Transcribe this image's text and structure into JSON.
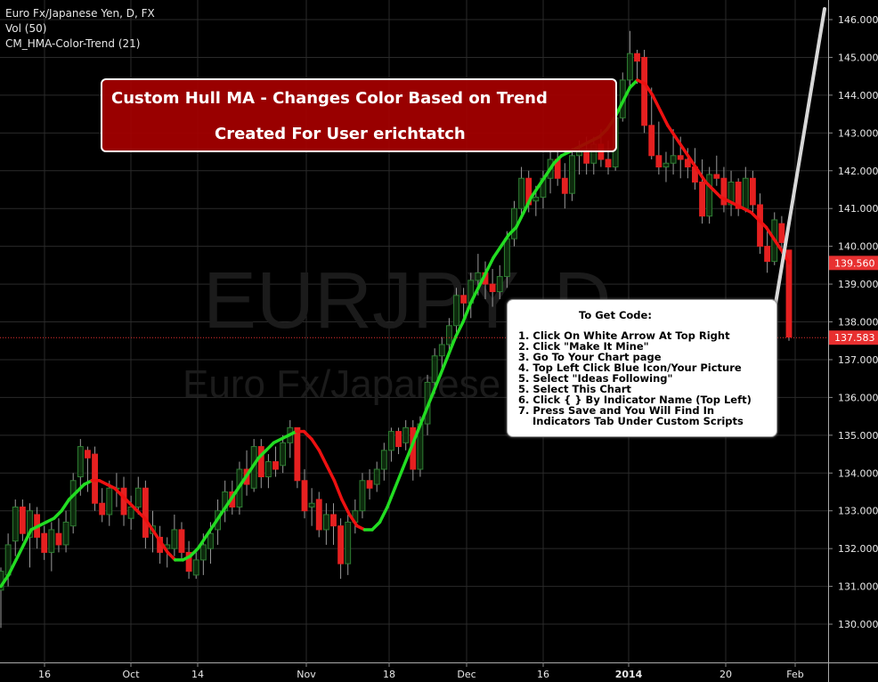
{
  "header": {
    "symbol_line": "Euro Fx/Japanese Yen, D, FX",
    "volume_line": "Vol (50)",
    "indicator_line": "CM_HMA-Color-Trend (21)"
  },
  "watermark": {
    "ticker": "EURJPY, D",
    "name": "Euro Fx/Japanese Yen"
  },
  "banner": {
    "line1": "Custom Hull MA - Changes Color Based on Trend",
    "line2": "Created For User erichtatch"
  },
  "callout": {
    "title": "To Get Code:",
    "steps": [
      "1. Click On White Arrow At Top Right",
      "2. Click \"Make It Mine\"",
      "3. Go To Your Chart page",
      "4. Top Left Click Blue Icon/Your Picture",
      "5. Select \"Ideas Following\"",
      "5. Select This Chart",
      "6. Click { } By Indicator Name (Top Left)",
      "7. Press Save and You Will Find In",
      "    Indicators Tab Under Custom Scripts"
    ]
  },
  "colors": {
    "background": "#000000",
    "up_candle": "#2e7d32",
    "down_candle": "#e52020",
    "hma_up": "#22dd22",
    "hma_down": "#ee1111",
    "price_label": "#e83030",
    "banner": "#a50000"
  },
  "chart_data": {
    "type": "candlestick",
    "y_axis_ticks": [
      "146.000",
      "145.000",
      "144.000",
      "143.000",
      "142.000",
      "141.000",
      "140.000",
      "139.000",
      "138.000",
      "137.000",
      "136.000",
      "135.000",
      "134.000",
      "133.000",
      "132.000",
      "131.000",
      "130.000"
    ],
    "ylim": [
      129.2,
      146.5
    ],
    "x_axis_ticks": [
      "16",
      "Oct",
      "14",
      "Nov",
      "18",
      "Dec",
      "16",
      "2014",
      "20",
      "Feb"
    ],
    "price_labels": [
      {
        "text": "139.560",
        "value": 139.56,
        "kind": "hma"
      },
      {
        "text": "137.583",
        "value": 137.583,
        "kind": "last"
      }
    ],
    "candles": [
      [
        130.9,
        131.5,
        129.9,
        131.4
      ],
      [
        131.3,
        132.4,
        131.0,
        132.1
      ],
      [
        132.2,
        133.3,
        131.8,
        133.1
      ],
      [
        133.1,
        133.3,
        132.2,
        132.4
      ],
      [
        132.3,
        133.2,
        131.5,
        133.0
      ],
      [
        132.9,
        133.1,
        132.0,
        132.3
      ],
      [
        132.4,
        132.6,
        131.7,
        131.9
      ],
      [
        131.9,
        132.7,
        131.4,
        132.5
      ],
      [
        132.4,
        132.8,
        131.9,
        132.1
      ],
      [
        132.1,
        133.0,
        131.9,
        132.7
      ],
      [
        132.6,
        134.0,
        132.4,
        133.8
      ],
      [
        133.9,
        134.9,
        133.4,
        134.7
      ],
      [
        134.6,
        134.7,
        133.5,
        134.4
      ],
      [
        134.5,
        134.7,
        133.0,
        133.2
      ],
      [
        133.2,
        133.6,
        132.7,
        132.9
      ],
      [
        132.9,
        133.8,
        132.6,
        133.6
      ],
      [
        133.6,
        134.0,
        133.1,
        133.6
      ],
      [
        133.6,
        133.9,
        132.6,
        132.9
      ],
      [
        132.8,
        133.4,
        132.5,
        133.1
      ],
      [
        133.1,
        133.9,
        132.9,
        133.6
      ],
      [
        133.6,
        133.8,
        132.0,
        132.3
      ],
      [
        132.4,
        133.0,
        131.9,
        132.6
      ],
      [
        132.3,
        132.6,
        131.6,
        131.9
      ],
      [
        132.0,
        132.3,
        131.5,
        132.1
      ],
      [
        132.0,
        132.9,
        131.8,
        132.5
      ],
      [
        132.5,
        132.7,
        131.7,
        131.9
      ],
      [
        131.9,
        132.2,
        131.2,
        131.4
      ],
      [
        131.3,
        131.9,
        131.2,
        131.7
      ],
      [
        131.7,
        132.4,
        131.3,
        132.1
      ],
      [
        132.0,
        132.7,
        131.6,
        132.4
      ],
      [
        132.5,
        133.3,
        132.1,
        133.0
      ],
      [
        133.0,
        133.8,
        132.7,
        133.5
      ],
      [
        133.5,
        133.8,
        132.9,
        133.1
      ],
      [
        133.1,
        134.3,
        132.9,
        134.1
      ],
      [
        134.1,
        134.6,
        133.4,
        133.7
      ],
      [
        133.6,
        134.9,
        133.5,
        134.7
      ],
      [
        134.7,
        134.9,
        133.6,
        133.9
      ],
      [
        133.9,
        134.5,
        133.6,
        134.3
      ],
      [
        134.3,
        134.7,
        133.9,
        134.1
      ],
      [
        134.2,
        135.0,
        134.0,
        134.8
      ],
      [
        134.8,
        135.4,
        134.4,
        135.2
      ],
      [
        135.2,
        135.2,
        133.6,
        133.8
      ],
      [
        133.8,
        134.1,
        132.8,
        133.0
      ],
      [
        133.1,
        133.6,
        132.6,
        133.2
      ],
      [
        133.3,
        133.5,
        132.3,
        132.5
      ],
      [
        132.5,
        133.2,
        132.1,
        132.9
      ],
      [
        132.9,
        133.2,
        132.1,
        132.6
      ],
      [
        132.6,
        132.8,
        131.2,
        131.6
      ],
      [
        131.6,
        132.9,
        131.3,
        132.7
      ],
      [
        132.7,
        133.3,
        132.4,
        133.0
      ],
      [
        133.0,
        134.0,
        132.8,
        133.8
      ],
      [
        133.8,
        134.1,
        133.3,
        133.6
      ],
      [
        133.7,
        134.3,
        133.5,
        134.1
      ],
      [
        134.1,
        134.8,
        133.8,
        134.6
      ],
      [
        134.6,
        135.2,
        134.3,
        135.1
      ],
      [
        135.1,
        135.2,
        134.5,
        134.7
      ],
      [
        134.8,
        135.4,
        134.6,
        135.2
      ],
      [
        135.2,
        135.4,
        133.8,
        134.1
      ],
      [
        134.1,
        135.5,
        133.9,
        135.3
      ],
      [
        135.3,
        136.6,
        135.0,
        136.4
      ],
      [
        136.4,
        137.3,
        136.1,
        137.1
      ],
      [
        137.1,
        137.6,
        136.7,
        137.4
      ],
      [
        137.4,
        138.1,
        137.1,
        137.9
      ],
      [
        137.9,
        138.9,
        137.6,
        138.7
      ],
      [
        138.7,
        138.9,
        138.1,
        138.5
      ],
      [
        138.5,
        139.3,
        138.1,
        139.1
      ],
      [
        139.1,
        139.8,
        138.7,
        139.3
      ],
      [
        139.3,
        139.6,
        138.6,
        139.0
      ],
      [
        139.0,
        139.4,
        138.4,
        138.8
      ],
      [
        138.8,
        139.5,
        138.6,
        139.2
      ],
      [
        139.2,
        140.4,
        138.9,
        140.2
      ],
      [
        140.2,
        141.2,
        140.0,
        141.0
      ],
      [
        141.0,
        142.1,
        140.8,
        141.8
      ],
      [
        141.8,
        142.0,
        140.9,
        141.1
      ],
      [
        141.2,
        141.6,
        140.8,
        141.3
      ],
      [
        141.3,
        142.0,
        141.0,
        141.8
      ],
      [
        141.8,
        142.5,
        141.4,
        142.3
      ],
      [
        142.3,
        142.5,
        141.6,
        141.8
      ],
      [
        141.8,
        142.2,
        141.0,
        141.4
      ],
      [
        141.4,
        142.6,
        141.2,
        142.4
      ],
      [
        142.4,
        142.8,
        141.9,
        142.5
      ],
      [
        142.5,
        142.9,
        141.9,
        142.2
      ],
      [
        142.2,
        142.9,
        141.9,
        142.7
      ],
      [
        142.7,
        143.1,
        142.1,
        142.3
      ],
      [
        142.3,
        142.8,
        141.9,
        142.1
      ],
      [
        142.1,
        143.6,
        142.0,
        143.4
      ],
      [
        143.4,
        144.6,
        143.3,
        144.4
      ],
      [
        144.4,
        145.7,
        144.2,
        145.1
      ],
      [
        145.1,
        145.2,
        144.3,
        144.9
      ],
      [
        145.0,
        145.2,
        143.0,
        143.2
      ],
      [
        143.2,
        144.2,
        142.3,
        142.4
      ],
      [
        142.4,
        143.3,
        141.9,
        142.1
      ],
      [
        142.1,
        142.5,
        141.7,
        142.2
      ],
      [
        142.2,
        143.1,
        141.9,
        142.4
      ],
      [
        142.4,
        142.9,
        141.8,
        142.3
      ],
      [
        142.3,
        142.6,
        141.8,
        142.1
      ],
      [
        142.1,
        142.6,
        141.5,
        141.7
      ],
      [
        141.7,
        142.3,
        140.6,
        140.8
      ],
      [
        140.8,
        142.1,
        140.6,
        141.9
      ],
      [
        141.9,
        142.4,
        141.6,
        141.8
      ],
      [
        141.8,
        142.1,
        140.9,
        141.1
      ],
      [
        141.1,
        142.0,
        140.8,
        141.7
      ],
      [
        141.7,
        141.8,
        140.8,
        141.0
      ],
      [
        141.0,
        142.1,
        140.9,
        141.8
      ],
      [
        141.8,
        142.0,
        140.9,
        141.1
      ],
      [
        141.1,
        141.4,
        139.8,
        140.0
      ],
      [
        140.0,
        140.5,
        139.3,
        139.6
      ],
      [
        139.6,
        140.9,
        139.5,
        140.7
      ],
      [
        140.6,
        140.8,
        139.8,
        140.1
      ],
      [
        139.9,
        139.9,
        137.5,
        137.6
      ]
    ],
    "hma_points": [
      [
        131.0,
        "u"
      ],
      [
        131.3,
        "u"
      ],
      [
        131.7,
        "u"
      ],
      [
        132.1,
        "u"
      ],
      [
        132.5,
        "u"
      ],
      [
        132.6,
        "u"
      ],
      [
        132.7,
        "u"
      ],
      [
        132.8,
        "u"
      ],
      [
        133.0,
        "u"
      ],
      [
        133.3,
        "u"
      ],
      [
        133.5,
        "u"
      ],
      [
        133.7,
        "u"
      ],
      [
        133.8,
        "u"
      ],
      [
        133.8,
        "d"
      ],
      [
        133.7,
        "d"
      ],
      [
        133.6,
        "d"
      ],
      [
        133.4,
        "d"
      ],
      [
        133.2,
        "d"
      ],
      [
        133.0,
        "d"
      ],
      [
        132.8,
        "d"
      ],
      [
        132.5,
        "d"
      ],
      [
        132.2,
        "d"
      ],
      [
        131.9,
        "d"
      ],
      [
        131.7,
        "d"
      ],
      [
        131.7,
        "u"
      ],
      [
        131.8,
        "u"
      ],
      [
        132.0,
        "u"
      ],
      [
        132.3,
        "u"
      ],
      [
        132.6,
        "u"
      ],
      [
        132.9,
        "u"
      ],
      [
        133.2,
        "u"
      ],
      [
        133.5,
        "u"
      ],
      [
        133.8,
        "u"
      ],
      [
        134.1,
        "u"
      ],
      [
        134.4,
        "u"
      ],
      [
        134.6,
        "u"
      ],
      [
        134.8,
        "u"
      ],
      [
        134.9,
        "u"
      ],
      [
        135.0,
        "u"
      ],
      [
        135.1,
        "u"
      ],
      [
        135.1,
        "d"
      ],
      [
        134.9,
        "d"
      ],
      [
        134.6,
        "d"
      ],
      [
        134.2,
        "d"
      ],
      [
        133.8,
        "d"
      ],
      [
        133.3,
        "d"
      ],
      [
        132.9,
        "d"
      ],
      [
        132.6,
        "d"
      ],
      [
        132.5,
        "d"
      ],
      [
        132.5,
        "u"
      ],
      [
        132.7,
        "u"
      ],
      [
        133.1,
        "u"
      ],
      [
        133.6,
        "u"
      ],
      [
        134.1,
        "u"
      ],
      [
        134.6,
        "u"
      ],
      [
        135.1,
        "u"
      ],
      [
        135.6,
        "u"
      ],
      [
        136.1,
        "u"
      ],
      [
        136.6,
        "u"
      ],
      [
        137.1,
        "u"
      ],
      [
        137.6,
        "u"
      ],
      [
        138.0,
        "u"
      ],
      [
        138.5,
        "u"
      ],
      [
        138.9,
        "u"
      ],
      [
        139.3,
        "u"
      ],
      [
        139.7,
        "u"
      ],
      [
        140.0,
        "u"
      ],
      [
        140.3,
        "u"
      ],
      [
        140.5,
        "u"
      ],
      [
        140.9,
        "u"
      ],
      [
        141.3,
        "u"
      ],
      [
        141.6,
        "u"
      ],
      [
        141.9,
        "u"
      ],
      [
        142.2,
        "u"
      ],
      [
        142.4,
        "u"
      ],
      [
        142.5,
        "u"
      ],
      [
        142.6,
        "u"
      ],
      [
        142.7,
        "u"
      ],
      [
        142.8,
        "u"
      ],
      [
        142.9,
        "u"
      ],
      [
        143.1,
        "u"
      ],
      [
        143.4,
        "u"
      ],
      [
        143.8,
        "u"
      ],
      [
        144.2,
        "u"
      ],
      [
        144.4,
        "u"
      ],
      [
        144.3,
        "d"
      ],
      [
        144.0,
        "d"
      ],
      [
        143.6,
        "d"
      ],
      [
        143.2,
        "d"
      ],
      [
        142.9,
        "d"
      ],
      [
        142.6,
        "d"
      ],
      [
        142.3,
        "d"
      ],
      [
        142.0,
        "d"
      ],
      [
        141.7,
        "d"
      ],
      [
        141.5,
        "d"
      ],
      [
        141.3,
        "d"
      ],
      [
        141.2,
        "d"
      ],
      [
        141.1,
        "d"
      ],
      [
        141.0,
        "d"
      ],
      [
        140.9,
        "d"
      ],
      [
        140.7,
        "d"
      ],
      [
        140.5,
        "d"
      ],
      [
        140.2,
        "d"
      ],
      [
        139.9,
        "d"
      ],
      [
        139.56,
        "d"
      ]
    ]
  }
}
